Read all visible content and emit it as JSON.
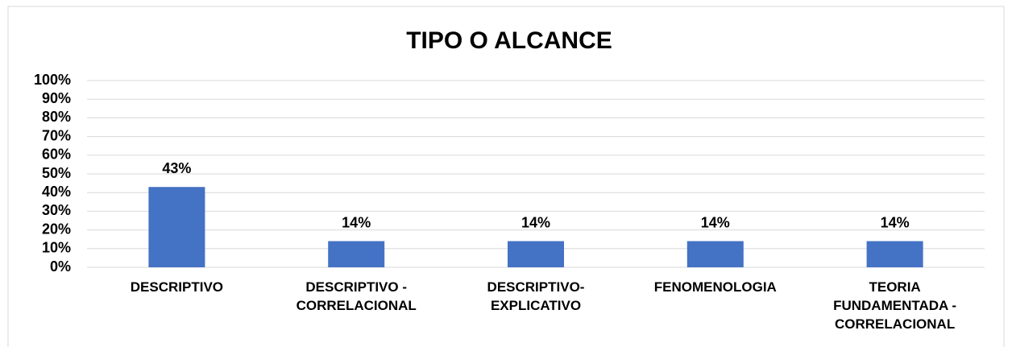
{
  "chart_data": {
    "type": "bar",
    "title": "TIPO O ALCANCE",
    "categories": [
      "DESCRIPTIVO",
      "DESCRIPTIVO -\nCORRELACIONAL",
      "DESCRIPTIVO-\nEXPLICATIVO",
      "FENOMENOLOGIA",
      "TEORIA\nFUNDAMENTADA -\nCORRELACIONAL"
    ],
    "values": [
      43,
      14,
      14,
      14,
      14
    ],
    "value_labels": [
      "43%",
      "14%",
      "14%",
      "14%",
      "14%"
    ],
    "color": "#4472c4",
    "ylim": [
      0,
      100
    ],
    "yticks": [
      {
        "value": 0,
        "label": "0%"
      },
      {
        "value": 10,
        "label": "10%"
      },
      {
        "value": 20,
        "label": "20%"
      },
      {
        "value": 30,
        "label": "30%"
      },
      {
        "value": 40,
        "label": "40%"
      },
      {
        "value": 50,
        "label": "50%"
      },
      {
        "value": 60,
        "label": "60%"
      },
      {
        "value": 70,
        "label": "70%"
      },
      {
        "value": 80,
        "label": "80%"
      },
      {
        "value": 90,
        "label": "90%"
      },
      {
        "value": 100,
        "label": "100%"
      }
    ],
    "grid": true
  }
}
